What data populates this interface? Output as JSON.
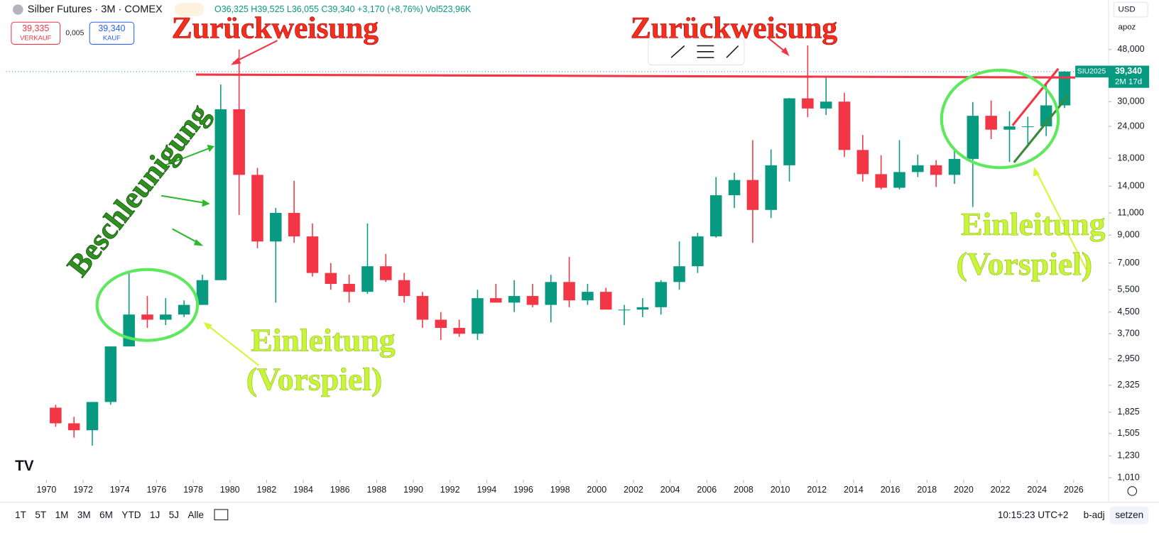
{
  "chart_data": {
    "type": "candlestick",
    "title": "Silber Futures · 3M · COMEX",
    "ohlc_label": "O36,325 H39,525 L36,055 C39,340 +3,170 (+8,76%) Vol523,96K",
    "x": [
      1970,
      1971,
      1972,
      1973,
      1974,
      1975,
      1976,
      1977,
      1978,
      1979,
      1980,
      1981,
      1982,
      1983,
      1984,
      1985,
      1986,
      1987,
      1988,
      1989,
      1990,
      1991,
      1992,
      1993,
      1994,
      1995,
      1996,
      1997,
      1998,
      1999,
      2000,
      2001,
      2002,
      2003,
      2004,
      2005,
      2006,
      2007,
      2008,
      2009,
      2010,
      2011,
      2012,
      2013,
      2014,
      2015,
      2016,
      2017,
      2018,
      2019,
      2020,
      2021,
      2022,
      2023,
      2024,
      2025
    ],
    "open": [
      1.9,
      1.65,
      1.55,
      2.0,
      3.3,
      4.4,
      4.2,
      4.4,
      4.8,
      6.0,
      28,
      15.5,
      8.5,
      11.0,
      8.9,
      6.4,
      5.8,
      5.4,
      6.8,
      6.0,
      5.2,
      4.2,
      3.9,
      3.7,
      5.1,
      4.9,
      5.2,
      4.8,
      5.9,
      5.0,
      5.4,
      4.6,
      4.6,
      4.7,
      5.9,
      6.8,
      8.9,
      12.9,
      14.8,
      11.3,
      16.9,
      30.9,
      28.2,
      30.0,
      19.4,
      15.6,
      13.8,
      15.9,
      16.9,
      15.5,
      17.9,
      26.4,
      23.3,
      24.0,
      24.0,
      29.0
    ],
    "high": [
      1.95,
      1.75,
      2.0,
      3.3,
      6.5,
      5.2,
      5.1,
      5.0,
      6.3,
      35,
      48,
      16.5,
      11.5,
      14.7,
      10.0,
      7.0,
      6.3,
      10.0,
      7.6,
      6.4,
      5.4,
      4.5,
      4.2,
      5.5,
      5.8,
      6.0,
      5.8,
      6.3,
      7.4,
      5.8,
      5.6,
      4.8,
      5.1,
      6.0,
      8.5,
      9.2,
      15.2,
      15.8,
      21.2,
      19.5,
      31,
      49.8,
      37.5,
      32.5,
      22.2,
      18.5,
      21.2,
      18.6,
      17.7,
      19.7,
      29.9,
      30.3,
      27.5,
      26.2,
      35.0,
      39.5
    ],
    "low": [
      1.6,
      1.45,
      1.35,
      1.95,
      3.3,
      3.9,
      4.0,
      4.3,
      4.8,
      6.0,
      10.8,
      8.0,
      4.9,
      8.4,
      6.2,
      5.5,
      4.9,
      5.3,
      5.9,
      4.9,
      3.9,
      3.5,
      3.6,
      3.5,
      4.9,
      4.5,
      4.7,
      4.1,
      4.7,
      4.8,
      4.6,
      4.0,
      4.3,
      4.4,
      5.5,
      6.4,
      8.8,
      11.5,
      8.4,
      10.5,
      14.6,
      26.1,
      26.6,
      18.2,
      14.6,
      13.6,
      13.6,
      15.2,
      13.9,
      14.3,
      11.6,
      21.4,
      17.4,
      19.9,
      22.0,
      28.3
    ],
    "close": [
      1.65,
      1.55,
      2.0,
      3.3,
      4.4,
      4.2,
      4.4,
      4.8,
      6.0,
      28,
      15.5,
      8.5,
      11.0,
      8.9,
      6.4,
      5.8,
      5.4,
      6.8,
      6.0,
      5.2,
      4.2,
      3.9,
      3.7,
      5.1,
      4.9,
      5.2,
      4.8,
      5.9,
      5.0,
      5.4,
      4.6,
      4.6,
      4.7,
      5.9,
      6.8,
      8.9,
      12.9,
      14.8,
      11.3,
      16.9,
      30.9,
      28.2,
      30.0,
      19.4,
      15.6,
      13.8,
      15.9,
      16.9,
      15.5,
      17.9,
      26.4,
      23.3,
      24.0,
      24.0,
      29.0,
      39.34
    ],
    "up_color": "#089981",
    "down_color": "#f23645",
    "log_scale": true,
    "grid": false,
    "xlim": [
      1967.8,
      2027.9
    ],
    "xticks": [
      1970,
      1972,
      1974,
      1976,
      1978,
      1980,
      1982,
      1984,
      1986,
      1988,
      1990,
      1992,
      1994,
      1996,
      1998,
      2000,
      2002,
      2004,
      2006,
      2008,
      2010,
      2012,
      2014,
      2016,
      2018,
      2020,
      2022,
      2024,
      2026
    ],
    "ylim": [
      0.99,
      75
    ],
    "yticks": [
      {
        "value": 48,
        "label": "48,000"
      },
      {
        "value": 30,
        "label": "30,000"
      },
      {
        "value": 24,
        "label": "24,000"
      },
      {
        "value": 18,
        "label": "18,000"
      },
      {
        "value": 14,
        "label": "14,000"
      },
      {
        "value": 11,
        "label": "11,000"
      },
      {
        "value": 9,
        "label": "9,000"
      },
      {
        "value": 7,
        "label": "7,000"
      },
      {
        "value": 5.5,
        "label": "5,500"
      },
      {
        "value": 4.5,
        "label": "4,500"
      },
      {
        "value": 3.7,
        "label": "3,700"
      },
      {
        "value": 2.95,
        "label": "2,950"
      },
      {
        "value": 2.325,
        "label": "2,325"
      },
      {
        "value": 1.825,
        "label": "1,825"
      },
      {
        "value": 1.505,
        "label": "1,505"
      },
      {
        "value": 1.23,
        "label": "1,230"
      },
      {
        "value": 1.01,
        "label": "1,010"
      }
    ],
    "last_price": {
      "value": 39.34,
      "label": "39,340"
    },
    "contract": "SIU2025",
    "countdown": "2M 17d",
    "annotations": [
      "Zurückweisung",
      "Zurückweisung",
      "Beschleunigung",
      "Einleitung",
      "(Vorspiel)",
      "Einleitung",
      "(Vorspiel)"
    ]
  },
  "ui": {
    "sell_price": "39,335",
    "sell": "VERKAUF",
    "spread": "0,005",
    "buy_price": "39,340",
    "buy": "KAUF",
    "currency": "USD",
    "scale_mode": "apoz",
    "ranges": [
      "1T",
      "5T",
      "1M",
      "3M",
      "6M",
      "YTD",
      "1J",
      "5J",
      "Alle"
    ],
    "clock": "10:15:23 UTC+2",
    "adjust": "b-adj",
    "set": "setzen"
  }
}
